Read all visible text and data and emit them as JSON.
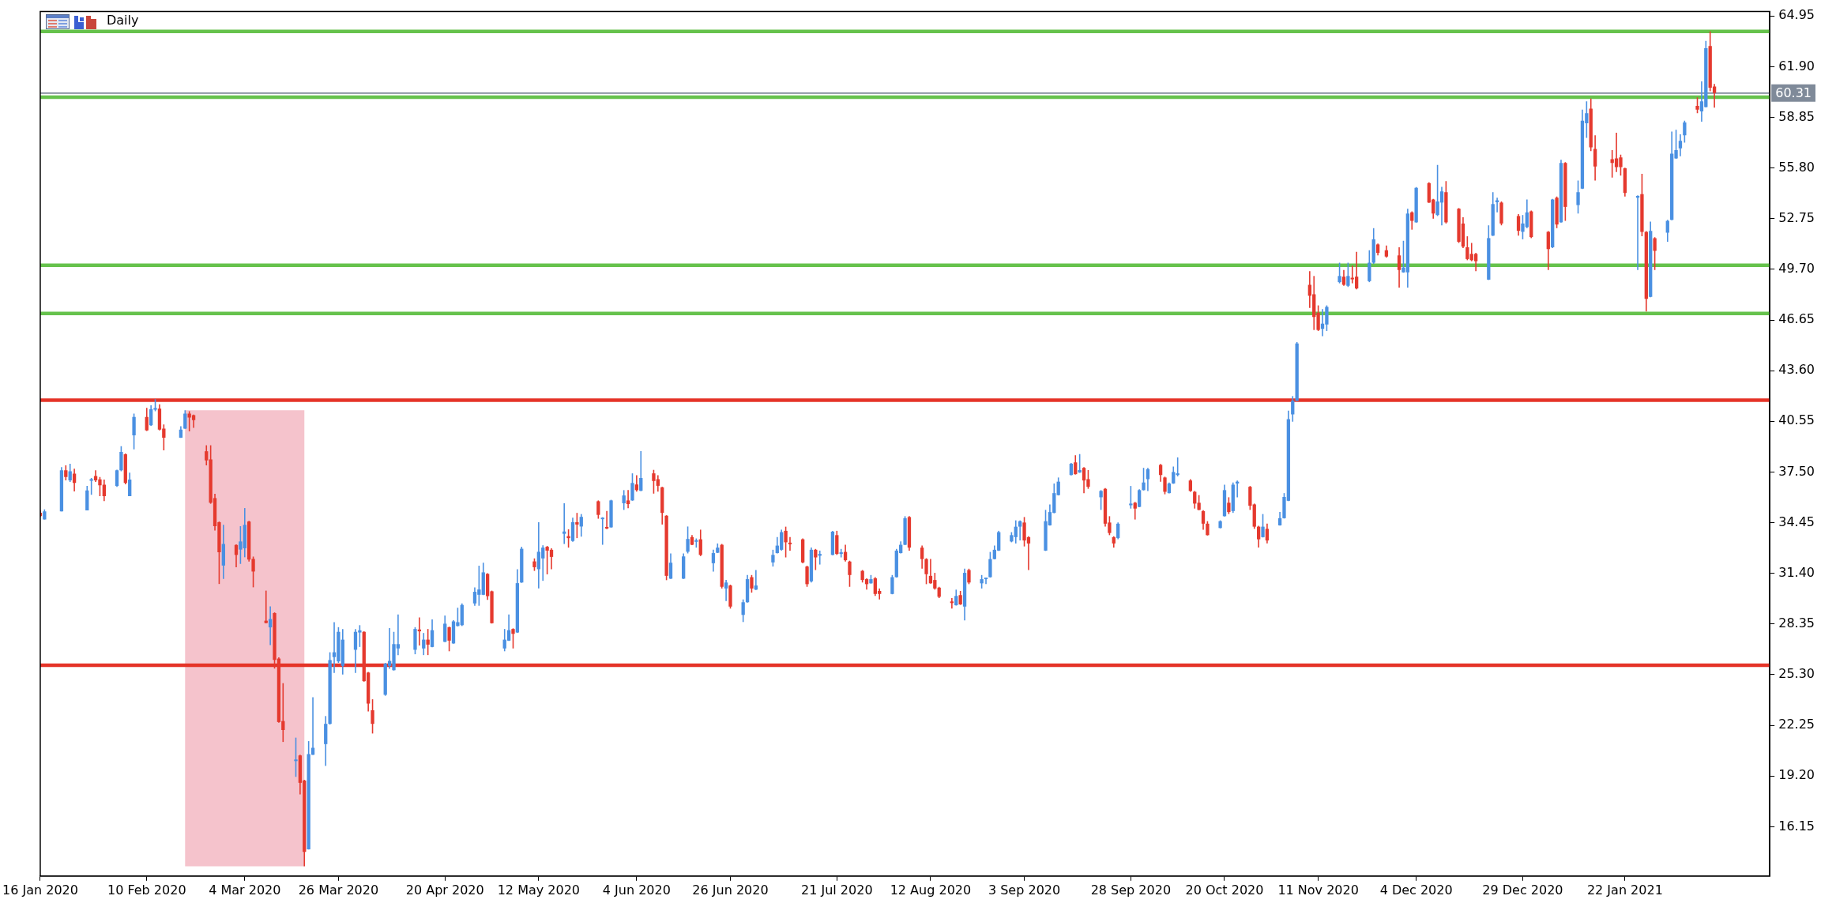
{
  "chart_data": {
    "type": "candlestick",
    "title": "Daily",
    "x": [
      "2020-01-16",
      "2020-01-17",
      "2020-01-21",
      "2020-01-22",
      "2020-01-23",
      "2020-01-24",
      "2020-01-27",
      "2020-01-28",
      "2020-01-29",
      "2020-01-30",
      "2020-01-31",
      "2020-02-03",
      "2020-02-04",
      "2020-02-05",
      "2020-02-06",
      "2020-02-07",
      "2020-02-10",
      "2020-02-11",
      "2020-02-12",
      "2020-02-13",
      "2020-02-14",
      "2020-02-18",
      "2020-02-19",
      "2020-02-20",
      "2020-02-21",
      "2020-02-24",
      "2020-02-25",
      "2020-02-26",
      "2020-02-27",
      "2020-02-28",
      "2020-03-02",
      "2020-03-03",
      "2020-03-04",
      "2020-03-05",
      "2020-03-06",
      "2020-03-09",
      "2020-03-10",
      "2020-03-11",
      "2020-03-12",
      "2020-03-13",
      "2020-03-16",
      "2020-03-17",
      "2020-03-18",
      "2020-03-19",
      "2020-03-20",
      "2020-03-23",
      "2020-03-24",
      "2020-03-25",
      "2020-03-26",
      "2020-03-27",
      "2020-03-30",
      "2020-03-31",
      "2020-04-01",
      "2020-04-02",
      "2020-04-03",
      "2020-04-06",
      "2020-04-07",
      "2020-04-08",
      "2020-04-09",
      "2020-04-13",
      "2020-04-14",
      "2020-04-15",
      "2020-04-16",
      "2020-04-17",
      "2020-04-20",
      "2020-04-21",
      "2020-04-22",
      "2020-04-23",
      "2020-04-24",
      "2020-04-27",
      "2020-04-28",
      "2020-04-29",
      "2020-04-30",
      "2020-05-01",
      "2020-05-04",
      "2020-05-05",
      "2020-05-06",
      "2020-05-07",
      "2020-05-08",
      "2020-05-11",
      "2020-05-12",
      "2020-05-13",
      "2020-05-14",
      "2020-05-15",
      "2020-05-18",
      "2020-05-19",
      "2020-05-20",
      "2020-05-21",
      "2020-05-22",
      "2020-05-26",
      "2020-05-27",
      "2020-05-28",
      "2020-05-29",
      "2020-06-01",
      "2020-06-02",
      "2020-06-03",
      "2020-06-04",
      "2020-06-05",
      "2020-06-08",
      "2020-06-09",
      "2020-06-10",
      "2020-06-11",
      "2020-06-12",
      "2020-06-15",
      "2020-06-16",
      "2020-06-17",
      "2020-06-18",
      "2020-06-19",
      "2020-06-22",
      "2020-06-23",
      "2020-06-24",
      "2020-06-25",
      "2020-06-26",
      "2020-06-29",
      "2020-06-30",
      "2020-07-01",
      "2020-07-02",
      "2020-07-06",
      "2020-07-07",
      "2020-07-08",
      "2020-07-09",
      "2020-07-10",
      "2020-07-13",
      "2020-07-14",
      "2020-07-15",
      "2020-07-16",
      "2020-07-17",
      "2020-07-20",
      "2020-07-21",
      "2020-07-22",
      "2020-07-23",
      "2020-07-24",
      "2020-07-27",
      "2020-07-28",
      "2020-07-29",
      "2020-07-30",
      "2020-07-31",
      "2020-08-03",
      "2020-08-04",
      "2020-08-05",
      "2020-08-06",
      "2020-08-07",
      "2020-08-10",
      "2020-08-11",
      "2020-08-12",
      "2020-08-13",
      "2020-08-14",
      "2020-08-17",
      "2020-08-18",
      "2020-08-19",
      "2020-08-20",
      "2020-08-21",
      "2020-08-24",
      "2020-08-25",
      "2020-08-26",
      "2020-08-27",
      "2020-08-28",
      "2020-08-31",
      "2020-09-01",
      "2020-09-02",
      "2020-09-03",
      "2020-09-04",
      "2020-09-08",
      "2020-09-09",
      "2020-09-10",
      "2020-09-11",
      "2020-09-14",
      "2020-09-15",
      "2020-09-16",
      "2020-09-17",
      "2020-09-18",
      "2020-09-21",
      "2020-09-22",
      "2020-09-23",
      "2020-09-24",
      "2020-09-25",
      "2020-09-28",
      "2020-09-29",
      "2020-09-30",
      "2020-10-01",
      "2020-10-02",
      "2020-10-05",
      "2020-10-06",
      "2020-10-07",
      "2020-10-08",
      "2020-10-09",
      "2020-10-12",
      "2020-10-13",
      "2020-10-14",
      "2020-10-15",
      "2020-10-16",
      "2020-10-19",
      "2020-10-20",
      "2020-10-21",
      "2020-10-22",
      "2020-10-23",
      "2020-10-26",
      "2020-10-27",
      "2020-10-28",
      "2020-10-29",
      "2020-10-30",
      "2020-11-02",
      "2020-11-03",
      "2020-11-04",
      "2020-11-05",
      "2020-11-06",
      "2020-11-09",
      "2020-11-10",
      "2020-11-11",
      "2020-11-12",
      "2020-11-13",
      "2020-11-16",
      "2020-11-17",
      "2020-11-18",
      "2020-11-19",
      "2020-11-20",
      "2020-11-23",
      "2020-11-24",
      "2020-11-25",
      "2020-11-27",
      "2020-11-30",
      "2020-12-01",
      "2020-12-02",
      "2020-12-03",
      "2020-12-04",
      "2020-12-07",
      "2020-12-08",
      "2020-12-09",
      "2020-12-10",
      "2020-12-11",
      "2020-12-14",
      "2020-12-15",
      "2020-12-16",
      "2020-12-17",
      "2020-12-18",
      "2020-12-21",
      "2020-12-22",
      "2020-12-23",
      "2020-12-24",
      "2020-12-28",
      "2020-12-29",
      "2020-12-30",
      "2020-12-31",
      "2021-01-04",
      "2021-01-05",
      "2021-01-06",
      "2021-01-07",
      "2021-01-08",
      "2021-01-11",
      "2021-01-12",
      "2021-01-13",
      "2021-01-14",
      "2021-01-15",
      "2021-01-19",
      "2021-01-20",
      "2021-01-21",
      "2021-01-22",
      "2021-01-25",
      "2021-01-26",
      "2021-01-27",
      "2021-01-28",
      "2021-01-29",
      "2021-02-01",
      "2021-02-02",
      "2021-02-03",
      "2021-02-04",
      "2021-02-05",
      "2021-02-08",
      "2021-02-09",
      "2021-02-10",
      "2021-02-11",
      "2021-02-12"
    ],
    "ohlc": [
      [
        35.05,
        35.2,
        34.8,
        34.85
      ],
      [
        34.64,
        35.25,
        34.64,
        35.13
      ],
      [
        35.13,
        37.8,
        35.13,
        37.6
      ],
      [
        37.6,
        37.9,
        37,
        37.2
      ],
      [
        37,
        38,
        36.9,
        37.54
      ],
      [
        37.4,
        37.7,
        36.33,
        36.84
      ],
      [
        35.19,
        36.66,
        35.19,
        36.39
      ],
      [
        36.98,
        37.14,
        36.13,
        37.02
      ],
      [
        37.26,
        37.6,
        36.9,
        37
      ],
      [
        37.06,
        37.2,
        36.05,
        36.7
      ],
      [
        36.74,
        37.04,
        35.75,
        36.05
      ],
      [
        36.66,
        37.64,
        36.6,
        37.6
      ],
      [
        37.6,
        39.05,
        37.54,
        38.71
      ],
      [
        38.57,
        38.61,
        36.76,
        36.84
      ],
      [
        36.05,
        37.46,
        36.05,
        37.04
      ],
      [
        39.71,
        41.02,
        38.87,
        40.82
      ],
      [
        40.82,
        41.36,
        39.97,
        40.01
      ],
      [
        40.32,
        41.52,
        40.28,
        41.28
      ],
      [
        41.26,
        41.89,
        41.16,
        41.32
      ],
      [
        41.32,
        41.58,
        40.01,
        40.05
      ],
      [
        40.11,
        40.36,
        38.81,
        39.57
      ],
      [
        39.57,
        40.26,
        39.55,
        40.05
      ],
      [
        40.11,
        41.22,
        40.1,
        41.02
      ],
      [
        41.02,
        41.16,
        39.95,
        40.78
      ],
      [
        40.92,
        40.96,
        40.16,
        40.62
      ],
      [
        38.75,
        39.11,
        37.9,
        38.2
      ],
      [
        38.26,
        39.11,
        35.59,
        35.65
      ],
      [
        35.93,
        36.19,
        33.98,
        34.24
      ],
      [
        34.48,
        34.52,
        30.76,
        32.67
      ],
      [
        31.87,
        34.32,
        31.06,
        33.17
      ],
      [
        33.11,
        33.15,
        31.77,
        32.51
      ],
      [
        32.83,
        34.24,
        31.97,
        33.32
      ],
      [
        32.91,
        35.33,
        32.37,
        34.32
      ],
      [
        34.52,
        34.56,
        32.11,
        32.23
      ],
      [
        32.27,
        32.41,
        30.56,
        31.51
      ],
      [
        28.55,
        30.36,
        28.39,
        28.41
      ],
      [
        28.15,
        29.41,
        27.08,
        28.65
      ],
      [
        29.01,
        29.05,
        25.67,
        26.19
      ],
      [
        26.27,
        26.34,
        22.41,
        22.45
      ],
      [
        22.51,
        24.79,
        21.25,
        21.97
      ],
      [
        20.1,
        21.51,
        19.15,
        20.16
      ],
      [
        20.44,
        20.48,
        18.09,
        18.79
      ],
      [
        18.93,
        18.97,
        13.76,
        14.63
      ],
      [
        14.79,
        21.3,
        14.77,
        20.52
      ],
      [
        20.48,
        23.94,
        20.47,
        20.9
      ],
      [
        21.12,
        22.81,
        19.81,
        22.34
      ],
      [
        22.34,
        26.65,
        22.3,
        26.18
      ],
      [
        26.36,
        28.46,
        25.4,
        26.65
      ],
      [
        26.1,
        28.16,
        26.01,
        27.88
      ],
      [
        25.83,
        28.05,
        25.31,
        27.41
      ],
      [
        26.8,
        28.05,
        25.4,
        27.88
      ],
      [
        27.84,
        28.28,
        26.97,
        27.97
      ],
      [
        27.88,
        27.91,
        24.88,
        24.91
      ],
      [
        25.43,
        25.47,
        23.09,
        23.56
      ],
      [
        23.16,
        23.82,
        21.76,
        22.34
      ],
      [
        24.09,
        26.01,
        24.03,
        25.96
      ],
      [
        25.83,
        28.11,
        25.66,
        26.13
      ],
      [
        25.57,
        27.88,
        25.55,
        27.14
      ],
      [
        26.88,
        28.93,
        26.48,
        27.14
      ],
      [
        26.8,
        28.16,
        26.53,
        28.05
      ],
      [
        28.02,
        28.75,
        27.06,
        27.91
      ],
      [
        26.88,
        27.81,
        26.48,
        27.41
      ],
      [
        27.41,
        28.05,
        26.48,
        27.11
      ],
      [
        26.97,
        28.63,
        26.95,
        27.98
      ],
      [
        27.28,
        28.86,
        27.26,
        28.37
      ],
      [
        28.16,
        28.19,
        26.71,
        27.35
      ],
      [
        27.18,
        28.58,
        27.16,
        28.51
      ],
      [
        28.23,
        29.33,
        28.21,
        28.46
      ],
      [
        28.28,
        29.59,
        28.23,
        29.5
      ],
      [
        29.59,
        30.55,
        29.45,
        30.29
      ],
      [
        30.11,
        31.86,
        29.45,
        30.43
      ],
      [
        30.11,
        32.04,
        30.09,
        31.46
      ],
      [
        31.37,
        31.41,
        29.8,
        30.03
      ],
      [
        30.32,
        30.36,
        28.38,
        28.4
      ],
      [
        26.88,
        28.05,
        26.71,
        27.41
      ],
      [
        27.35,
        28.93,
        27.33,
        27.98
      ],
      [
        28.05,
        28.09,
        26.88,
        27.76
      ],
      [
        27.84,
        31.65,
        27.82,
        30.81
      ],
      [
        30.85,
        33,
        30.83,
        32.88
      ],
      [
        32.12,
        32.3,
        31.55,
        31.77
      ],
      [
        31.65,
        34.48,
        30.5,
        32.7
      ],
      [
        32.3,
        33.09,
        30.95,
        32.95
      ],
      [
        33,
        33.05,
        31.34,
        32.77
      ],
      [
        32.82,
        32.91,
        31.65,
        32.39
      ],
      [
        33.78,
        35.62,
        33.17,
        33.92
      ],
      [
        33.64,
        34.05,
        32.95,
        33.52
      ],
      [
        33.35,
        34.75,
        33.3,
        34.48
      ],
      [
        34.48,
        35.04,
        33.52,
        34.34
      ],
      [
        34.22,
        34.97,
        33.61,
        34.8
      ],
      [
        35.74,
        35.79,
        34.69,
        34.92
      ],
      [
        34.66,
        34.78,
        33.12,
        34.73
      ],
      [
        34.17,
        35.15,
        34.06,
        34.1
      ],
      [
        34.17,
        35.83,
        34.15,
        35.79
      ],
      [
        35.62,
        36.41,
        35.22,
        36.09
      ],
      [
        35.79,
        36.41,
        35.32,
        35.57
      ],
      [
        35.79,
        37.42,
        35.77,
        36.84
      ],
      [
        36.75,
        37.31,
        36.32,
        36.41
      ],
      [
        36.37,
        38.76,
        36.35,
        37.14
      ],
      [
        37.42,
        37.63,
        36.2,
        36.96
      ],
      [
        37.07,
        37.31,
        36.32,
        36.67
      ],
      [
        36.58,
        36.61,
        34.34,
        35.04
      ],
      [
        34.87,
        34.9,
        30.99,
        31.25
      ],
      [
        31.08,
        32.6,
        31.06,
        32.04
      ],
      [
        31.08,
        32.6,
        31.06,
        32.42
      ],
      [
        32.7,
        34.22,
        32.6,
        33.47
      ],
      [
        33.58,
        33.7,
        33.1,
        33.12
      ],
      [
        33.3,
        33.5,
        32.95,
        33.38
      ],
      [
        33.45,
        34.03,
        32.44,
        32.51
      ],
      [
        32.01,
        32.82,
        31.5,
        32.62
      ],
      [
        32.64,
        33.2,
        32.62,
        32.95
      ],
      [
        33.12,
        33.17,
        30.49,
        30.59
      ],
      [
        30.49,
        31,
        29.73,
        30.85
      ],
      [
        30.67,
        30.72,
        29.28,
        29.4
      ],
      [
        28.9,
        29.83,
        28.47,
        29.66
      ],
      [
        29.66,
        31.3,
        29.64,
        31.05
      ],
      [
        31.17,
        31.3,
        30.24,
        30.49
      ],
      [
        30.42,
        31.6,
        30.4,
        30.67
      ],
      [
        32.06,
        32.82,
        31.81,
        32.51
      ],
      [
        32.62,
        33.58,
        32.6,
        33.07
      ],
      [
        32.82,
        34.03,
        32.77,
        33.88
      ],
      [
        33.96,
        34.21,
        32.36,
        33.27
      ],
      [
        33.25,
        33.58,
        32.77,
        33.15
      ],
      [
        33.45,
        33.5,
        32.01,
        32.06
      ],
      [
        31.81,
        31.86,
        30.59,
        30.75
      ],
      [
        30.92,
        32.95,
        30.85,
        32.82
      ],
      [
        32.82,
        32.87,
        31.6,
        32.36
      ],
      [
        32.46,
        32.77,
        31.93,
        32.57
      ],
      [
        32.51,
        33.96,
        32.49,
        33.91
      ],
      [
        33.7,
        33.96,
        32.51,
        32.57
      ],
      [
        32.57,
        32.87,
        32.36,
        32.64
      ],
      [
        32.69,
        33.12,
        32.11,
        32.19
      ],
      [
        32.11,
        32.16,
        30.59,
        31.3
      ],
      [
        31.55,
        31.6,
        30.85,
        31
      ],
      [
        31.05,
        31.1,
        30.42,
        30.75
      ],
      [
        30.8,
        31.3,
        30.78,
        31.05
      ],
      [
        31.1,
        31.17,
        30.04,
        30.16
      ],
      [
        30.34,
        30.49,
        29.83,
        30.16
      ],
      [
        30.16,
        31.3,
        30.14,
        31.17
      ],
      [
        31.17,
        32.87,
        31.15,
        32.77
      ],
      [
        32.62,
        33.32,
        32.6,
        33.12
      ],
      [
        33.12,
        34.84,
        33.1,
        34.72
      ],
      [
        34.79,
        34.84,
        32.77,
        32.95
      ],
      [
        32.95,
        33.07,
        31.68,
        32.26
      ],
      [
        32.26,
        32.31,
        30.75,
        31.35
      ],
      [
        31.25,
        32.26,
        30.78,
        30.8
      ],
      [
        31,
        31.43,
        30.42,
        30.49
      ],
      [
        30.54,
        30.59,
        29.91,
        29.99
      ],
      [
        29.71,
        29.91,
        29.28,
        29.61
      ],
      [
        29.48,
        30.42,
        29.46,
        30.04
      ],
      [
        30.09,
        30.34,
        29.5,
        29.53
      ],
      [
        29.4,
        31.68,
        28.57,
        31.43
      ],
      [
        31.6,
        31.68,
        30.75,
        30.85
      ],
      [
        30.8,
        31.3,
        30.49,
        31.05
      ],
      [
        31.05,
        31.12,
        30.75,
        31.1
      ],
      [
        31.17,
        32.69,
        31.15,
        32.26
      ],
      [
        32.26,
        33.07,
        32.24,
        32.82
      ],
      [
        32.77,
        33.96,
        32.75,
        33.88
      ],
      [
        33.32,
        33.88,
        33.27,
        33.7
      ],
      [
        33.58,
        34.59,
        33.2,
        34.21
      ],
      [
        34.21,
        34.59,
        33.38,
        34.54
      ],
      [
        34.46,
        34.79,
        33.02,
        33.38
      ],
      [
        33.58,
        33.63,
        31.6,
        33.2
      ],
      [
        32.77,
        35.22,
        32.75,
        34.54
      ],
      [
        34.29,
        35.55,
        34.27,
        35.09
      ],
      [
        35.04,
        36.81,
        35.02,
        36.23
      ],
      [
        36.11,
        37.17,
        36.09,
        36.92
      ],
      [
        37.32,
        38.05,
        37.3,
        38
      ],
      [
        38.08,
        38.51,
        37.35,
        37.37
      ],
      [
        37.47,
        38.58,
        37.45,
        37.62
      ],
      [
        37.75,
        37.8,
        36.23,
        36.99
      ],
      [
        37.07,
        37.62,
        36.49,
        36.61
      ],
      [
        35.98,
        36.41,
        35.22,
        36.36
      ],
      [
        36.49,
        36.54,
        34.21,
        34.39
      ],
      [
        34.46,
        34.84,
        33.7,
        33.83
      ],
      [
        33.58,
        33.63,
        32.95,
        33.2
      ],
      [
        33.53,
        34.46,
        33.45,
        34.39
      ],
      [
        35.5,
        36.66,
        35.3,
        35.6
      ],
      [
        35.65,
        35.7,
        34.64,
        35.3
      ],
      [
        35.4,
        36.46,
        35.38,
        36.41
      ],
      [
        36.41,
        37.75,
        36.39,
        36.87
      ],
      [
        37.07,
        37.75,
        36.36,
        37.67
      ],
      [
        37.93,
        37.98,
        36.92,
        37.32
      ],
      [
        37.17,
        37.22,
        36.16,
        36.31
      ],
      [
        36.23,
        36.87,
        36.21,
        36.81
      ],
      [
        36.81,
        37.83,
        36.79,
        37.5
      ],
      [
        37.32,
        38.38,
        37.24,
        37.42
      ],
      [
        36.99,
        37.07,
        36.31,
        36.36
      ],
      [
        36.31,
        36.36,
        35.3,
        35.6
      ],
      [
        35.65,
        36.11,
        35.2,
        35.22
      ],
      [
        35.15,
        35.2,
        34.03,
        34.39
      ],
      [
        34.39,
        34.54,
        33.68,
        33.7
      ],
      [
        34.13,
        34.59,
        34.11,
        34.54
      ],
      [
        34.84,
        36.74,
        34.82,
        36.41
      ],
      [
        35.65,
        35.98,
        34.97,
        35.09
      ],
      [
        35.15,
        36.87,
        35.04,
        36.74
      ],
      [
        36.81,
        36.99,
        35.98,
        36.92
      ],
      [
        36.61,
        36.66,
        35.22,
        35.47
      ],
      [
        35.55,
        35.6,
        34.08,
        34.21
      ],
      [
        34.21,
        34.26,
        32.95,
        33.45
      ],
      [
        33.58,
        34.97,
        33.56,
        34.21
      ],
      [
        34.08,
        34.39,
        33.2,
        33.38
      ],
      [
        34.29,
        35.09,
        34.27,
        34.72
      ],
      [
        34.72,
        36.23,
        34.7,
        36
      ],
      [
        35.77,
        41.19,
        35.75,
        40.68
      ],
      [
        40.97,
        42.07,
        40.53,
        41.79
      ],
      [
        41.79,
        45.32,
        41.77,
        45.24
      ],
      [
        48.77,
        49.59,
        47.38,
        48.11
      ],
      [
        48.2,
        49.3,
        46.05,
        46.83
      ],
      [
        47.09,
        47.53,
        45.99,
        46.05
      ],
      [
        46.12,
        47.31,
        45.68,
        46.43
      ],
      [
        46.38,
        47.53,
        45.99,
        47.44
      ],
      [
        48.93,
        50.1,
        48.86,
        49.3
      ],
      [
        49.26,
        49.66,
        48.71,
        48.77
      ],
      [
        48.71,
        50.1,
        48.64,
        49.3
      ],
      [
        49.19,
        49.92,
        48.86,
        49.1
      ],
      [
        49.26,
        50.76,
        48.49,
        48.55
      ],
      [
        48.99,
        50.85,
        48.93,
        50.1
      ],
      [
        50.1,
        52.18,
        50.03,
        51.51
      ],
      [
        51.2,
        51.25,
        50.54,
        50.69
      ],
      [
        50.85,
        51.14,
        50.41,
        50.47
      ],
      [
        50.54,
        51.03,
        48.6,
        49.66
      ],
      [
        49.52,
        51.42,
        49.5,
        49.81
      ],
      [
        49.52,
        53.35,
        48.6,
        53.06
      ],
      [
        53.13,
        53.19,
        52.09,
        52.62
      ],
      [
        52.53,
        54.65,
        52.51,
        54.61
      ],
      [
        54.89,
        54.94,
        53.7,
        53.72
      ],
      [
        53.9,
        53.94,
        52.75,
        53.06
      ],
      [
        52.97,
        55.99,
        52.91,
        53.79
      ],
      [
        53.72,
        54.67,
        52.35,
        54.39
      ],
      [
        54.34,
        55.01,
        52.46,
        52.53
      ],
      [
        53.35,
        53.39,
        51.29,
        51.36
      ],
      [
        52.46,
        52.84,
        50.98,
        51.07
      ],
      [
        51.03,
        51.69,
        50.25,
        50.32
      ],
      [
        50.63,
        51.29,
        50.19,
        50.25
      ],
      [
        50.63,
        50.69,
        49.59,
        50.19
      ],
      [
        49.08,
        52.35,
        49.06,
        51.58
      ],
      [
        51.73,
        54.34,
        51.71,
        53.63
      ],
      [
        53.74,
        54.01,
        53.13,
        53.86
      ],
      [
        53.72,
        53.79,
        52.35,
        52.46
      ],
      [
        52.91,
        53.02,
        51.73,
        52.02
      ],
      [
        51.96,
        52.97,
        51.51,
        52.46
      ],
      [
        52.24,
        53.9,
        52.18,
        53.13
      ],
      [
        53.19,
        53.24,
        51.58,
        51.64
      ],
      [
        51.96,
        52,
        49.66,
        50.92
      ],
      [
        51.03,
        53.94,
        50.98,
        53.9
      ],
      [
        54.01,
        54.08,
        52.18,
        52.4
      ],
      [
        52.53,
        56.29,
        52.51,
        56.11
      ],
      [
        56.11,
        56.15,
        52.62,
        53.46
      ],
      [
        53.57,
        55.05,
        53.06,
        54.34
      ],
      [
        54.56,
        59.32,
        54.54,
        58.65
      ],
      [
        58.5,
        59.82,
        57.61,
        59.1
      ],
      [
        59.38,
        59.98,
        56.82,
        57.04
      ],
      [
        56.95,
        57.77,
        55.05,
        55.89
      ],
      [
        56.33,
        56.88,
        55.23,
        56.11
      ],
      [
        56.38,
        57.92,
        55.56,
        55.85
      ],
      [
        56.44,
        56.6,
        55.34,
        55.85
      ],
      [
        55.78,
        55.82,
        54.08,
        54.3
      ],
      [
        54.01,
        54.16,
        49.66,
        54.12
      ],
      [
        54.23,
        55.45,
        51.69,
        51.96
      ],
      [
        51.96,
        52,
        47.16,
        47.93
      ],
      [
        48.04,
        52.57,
        48.02,
        52.02
      ],
      [
        51.58,
        51.64,
        49.66,
        50.81
      ],
      [
        51.91,
        52.68,
        51.36,
        52.62
      ],
      [
        52.68,
        57.99,
        52.66,
        56.66
      ],
      [
        56.38,
        58.1,
        56.36,
        56.88
      ],
      [
        56.99,
        57.83,
        56.51,
        57.44
      ],
      [
        57.77,
        58.65,
        57.33,
        58.54
      ],
      [
        59.54,
        60.05,
        59.1,
        59.32
      ],
      [
        59.21,
        61.02,
        58.59,
        59.82
      ],
      [
        59.47,
        63.45,
        59.45,
        63.01
      ],
      [
        63.14,
        64.02,
        60.42,
        60.64
      ],
      [
        60.71,
        60.86,
        59.43,
        60.31
      ]
    ],
    "colors": [
      "#e5392e",
      "#4a90e2",
      "#4a90e2",
      "#e5392e",
      "#4a90e2",
      "#e5392e",
      "#4a90e2",
      "#4a90e2",
      "#e5392e",
      "#e5392e",
      "#e5392e",
      "#4a90e2",
      "#4a90e2",
      "#e5392e",
      "#4a90e2",
      "#4a90e2",
      "#e5392e",
      "#4a90e2",
      "#4a90e2",
      "#e5392e",
      "#e5392e",
      "#4a90e2",
      "#4a90e2",
      "#e5392e",
      "#e5392e",
      "#e5392e",
      "#e5392e",
      "#e5392e",
      "#e5392e",
      "#4a90e2",
      "#e5392e",
      "#4a90e2",
      "#4a90e2",
      "#e5392e",
      "#e5392e",
      "#e5392e",
      "#4a90e2",
      "#e5392e",
      "#e5392e",
      "#e5392e",
      "#4a90e2",
      "#e5392e",
      "#e5392e",
      "#4a90e2",
      "#4a90e2",
      "#4a90e2",
      "#4a90e2",
      "#4a90e2",
      "#4a90e2",
      "#4a90e2",
      "#4a90e2",
      "#4a90e2",
      "#e5392e",
      "#e5392e",
      "#e5392e",
      "#4a90e2",
      "#4a90e2",
      "#4a90e2",
      "#4a90e2",
      "#4a90e2",
      "#e5392e",
      "#4a90e2",
      "#e5392e",
      "#4a90e2",
      "#4a90e2",
      "#e5392e",
      "#4a90e2",
      "#4a90e2",
      "#4a90e2",
      "#4a90e2",
      "#4a90e2",
      "#4a90e2",
      "#e5392e",
      "#e5392e",
      "#4a90e2",
      "#4a90e2",
      "#e5392e",
      "#4a90e2",
      "#4a90e2",
      "#e5392e",
      "#4a90e2",
      "#4a90e2",
      "#e5392e",
      "#e5392e",
      "#4a90e2",
      "#e5392e",
      "#4a90e2",
      "#e5392e",
      "#4a90e2",
      "#e5392e",
      "#4a90e2",
      "#e5392e",
      "#4a90e2",
      "#4a90e2",
      "#e5392e",
      "#4a90e2",
      "#e5392e",
      "#4a90e2",
      "#e5392e",
      "#e5392e",
      "#e5392e",
      "#e5392e",
      "#4a90e2",
      "#4a90e2",
      "#4a90e2",
      "#e5392e",
      "#4a90e2",
      "#e5392e",
      "#4a90e2",
      "#4a90e2",
      "#e5392e",
      "#4a90e2",
      "#e5392e",
      "#4a90e2",
      "#4a90e2",
      "#e5392e",
      "#4a90e2",
      "#4a90e2",
      "#4a90e2",
      "#4a90e2",
      "#e5392e",
      "#e5392e",
      "#e5392e",
      "#e5392e",
      "#4a90e2",
      "#e5392e",
      "#4a90e2",
      "#4a90e2",
      "#e5392e",
      "#4a90e2",
      "#e5392e",
      "#e5392e",
      "#e5392e",
      "#e5392e",
      "#4a90e2",
      "#e5392e",
      "#e5392e",
      "#4a90e2",
      "#4a90e2",
      "#4a90e2",
      "#4a90e2",
      "#e5392e",
      "#e5392e",
      "#e5392e",
      "#e5392e",
      "#e5392e",
      "#e5392e",
      "#e5392e",
      "#4a90e2",
      "#e5392e",
      "#4a90e2",
      "#e5392e",
      "#4a90e2",
      "#4a90e2",
      "#4a90e2",
      "#4a90e2",
      "#4a90e2",
      "#4a90e2",
      "#4a90e2",
      "#4a90e2",
      "#e5392e",
      "#e5392e",
      "#4a90e2",
      "#4a90e2",
      "#4a90e2",
      "#4a90e2",
      "#4a90e2",
      "#e5392e",
      "#4a90e2",
      "#e5392e",
      "#e5392e",
      "#4a90e2",
      "#e5392e",
      "#e5392e",
      "#e5392e",
      "#4a90e2",
      "#4a90e2",
      "#e5392e",
      "#4a90e2",
      "#4a90e2",
      "#4a90e2",
      "#e5392e",
      "#e5392e",
      "#4a90e2",
      "#4a90e2",
      "#4a90e2",
      "#e5392e",
      "#e5392e",
      "#e5392e",
      "#e5392e",
      "#e5392e",
      "#4a90e2",
      "#4a90e2",
      "#e5392e",
      "#4a90e2",
      "#4a90e2",
      "#e5392e",
      "#e5392e",
      "#e5392e",
      "#4a90e2",
      "#e5392e",
      "#4a90e2",
      "#4a90e2",
      "#4a90e2",
      "#4a90e2",
      "#4a90e2",
      "#e5392e",
      "#e5392e",
      "#e5392e",
      "#4a90e2",
      "#4a90e2",
      "#4a90e2",
      "#e5392e",
      "#4a90e2",
      "#e5392e",
      "#e5392e",
      "#4a90e2",
      "#4a90e2",
      "#e5392e",
      "#e5392e",
      "#e5392e",
      "#4a90e2",
      "#4a90e2",
      "#e5392e",
      "#4a90e2",
      "#e5392e",
      "#e5392e",
      "#4a90e2",
      "#4a90e2",
      "#e5392e",
      "#e5392e",
      "#e5392e",
      "#e5392e",
      "#e5392e",
      "#e5392e",
      "#4a90e2",
      "#4a90e2",
      "#4a90e2",
      "#e5392e",
      "#e5392e",
      "#4a90e2",
      "#4a90e2",
      "#e5392e",
      "#e5392e",
      "#4a90e2",
      "#e5392e",
      "#4a90e2",
      "#e5392e",
      "#4a90e2",
      "#4a90e2",
      "#4a90e2",
      "#e5392e",
      "#e5392e",
      "#e5392e",
      "#e5392e",
      "#e5392e",
      "#e5392e",
      "#4a90e2",
      "#e5392e",
      "#e5392e",
      "#4a90e2",
      "#e5392e",
      "#4a90e2",
      "#4a90e2",
      "#4a90e2",
      "#4a90e2",
      "#4a90e2",
      "#e5392e",
      "#4a90e2",
      "#4a90e2",
      "#e5392e",
      "#e5392e"
    ],
    "xlim": [
      "2020-01-16",
      "2021-02-25"
    ],
    "xticks": [
      {
        "value": "2020-01-16",
        "label": "16 Jan 2020"
      },
      {
        "value": "2020-02-10",
        "label": "10 Feb 2020"
      },
      {
        "value": "2020-03-04",
        "label": "4 Mar 2020"
      },
      {
        "value": "2020-03-26",
        "label": "26 Mar 2020"
      },
      {
        "value": "2020-04-20",
        "label": "20 Apr 2020"
      },
      {
        "value": "2020-05-12",
        "label": "12 May 2020"
      },
      {
        "value": "2020-06-04",
        "label": "4 Jun 2020"
      },
      {
        "value": "2020-06-26",
        "label": "26 Jun 2020"
      },
      {
        "value": "2020-07-21",
        "label": "21 Jul 2020"
      },
      {
        "value": "2020-08-12",
        "label": "12 Aug 2020"
      },
      {
        "value": "2020-09-03",
        "label": "3 Sep 2020"
      },
      {
        "value": "2020-09-28",
        "label": "28 Sep 2020"
      },
      {
        "value": "2020-10-20",
        "label": "20 Oct 2020"
      },
      {
        "value": "2020-11-11",
        "label": "11 Nov 2020"
      },
      {
        "value": "2020-12-04",
        "label": "4 Dec 2020"
      },
      {
        "value": "2020-12-29",
        "label": "29 Dec 2020"
      },
      {
        "value": "2021-01-22",
        "label": "22 Jan 2021"
      }
    ],
    "ylim": [
      13.18,
      65.22
    ],
    "yticks": [
      16.15,
      {
        "value": 19.2,
        "label": "19.20"
      },
      22.25,
      {
        "value": 25.3,
        "label": "25.30"
      },
      28.35,
      {
        "value": 31.4,
        "label": "31.40"
      },
      34.45,
      {
        "value": 37.5,
        "label": "37.50"
      },
      40.55,
      {
        "value": 43.6,
        "label": "43.60"
      },
      46.65,
      {
        "value": 49.7,
        "label": "49.70"
      },
      52.75,
      {
        "value": 55.8,
        "label": "55.80"
      },
      58.85,
      {
        "value": 61.9,
        "label": "61.90"
      },
      64.95
    ],
    "ref_lines": [
      {
        "axis": "y",
        "value": 64.02,
        "color": "#66c24c"
      },
      {
        "axis": "y",
        "value": 60.07,
        "color": "#66c24c"
      },
      {
        "axis": "y",
        "value": 49.95,
        "color": "#66c24c"
      },
      {
        "axis": "y",
        "value": 47.05,
        "color": "#66c24c"
      },
      {
        "axis": "y",
        "value": 41.82,
        "color": "#e53428"
      },
      {
        "axis": "y",
        "value": 25.87,
        "color": "#e53428"
      },
      {
        "axis": "y",
        "value": 60.31,
        "label": "60.31",
        "color": "#7f8a99"
      }
    ],
    "bands": [
      {
        "axis": "x",
        "from": "2020-02-19",
        "to": "2020-03-18",
        "color": "#f5c3cc"
      }
    ]
  }
}
